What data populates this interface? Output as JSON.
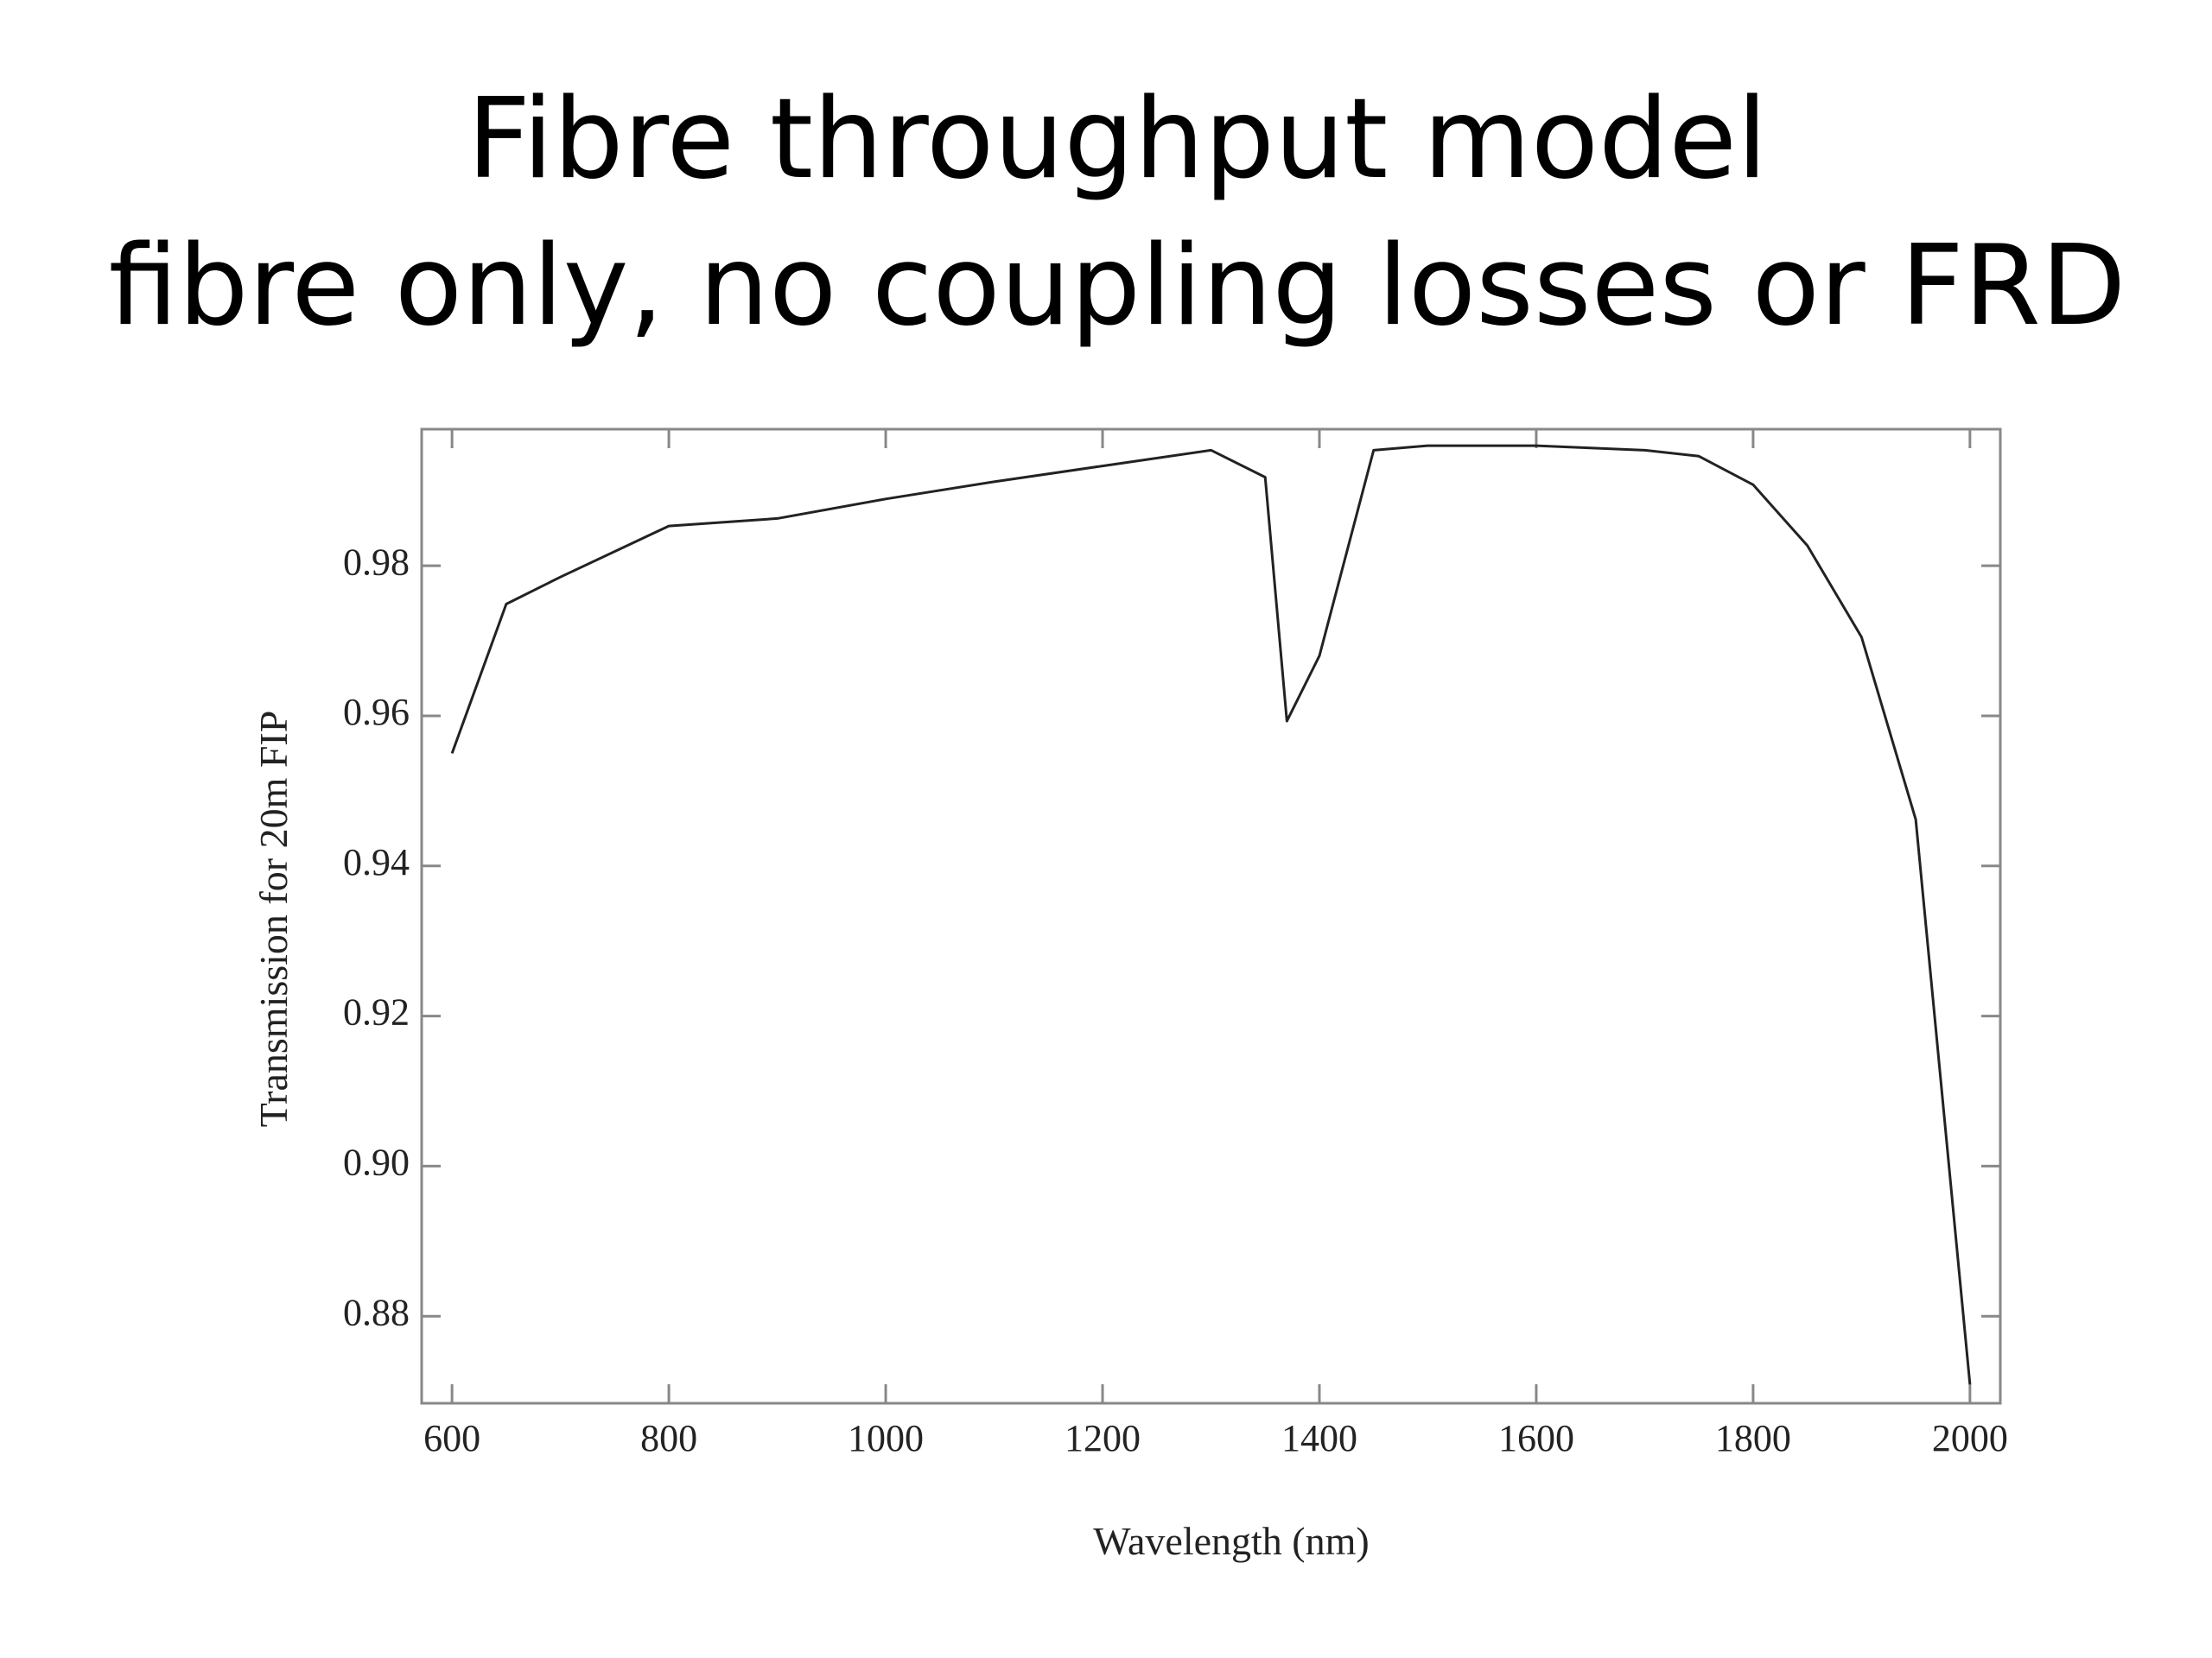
{
  "chart_data": {
    "type": "line",
    "title": "Fibre throughput model",
    "subtitle": "fibre only, no coupling losses or FRD",
    "x_label": "Wavelength (nm)",
    "y_label": "Transmission for 20m FIP",
    "x": [
      600,
      650,
      700,
      800,
      900,
      1000,
      1100,
      1200,
      1300,
      1350,
      1370,
      1400,
      1450,
      1500,
      1600,
      1700,
      1750,
      1800,
      1850,
      1900,
      1950,
      2000
    ],
    "series": [
      {
        "color": "#222222",
        "values": [
          0.955,
          0.9749,
          0.9785,
          0.9853,
          0.9863,
          0.9889,
          0.9912,
          0.9933,
          0.9954,
          0.9918,
          0.9593,
          0.968,
          0.9954,
          0.996,
          0.996,
          0.9954,
          0.9946,
          0.9908,
          0.9827,
          0.9705,
          0.9462,
          0.8709
        ]
      }
    ],
    "xlim": [
      572,
      2028
    ],
    "ylim": [
      0.8684,
      0.9982
    ],
    "xticks": [
      600,
      800,
      1000,
      1200,
      1400,
      1600,
      1800,
      2000
    ],
    "yticks": [
      0.88,
      {
        "value": 0.9,
        "label": "0.90"
      },
      0.92,
      0.94,
      0.96,
      0.98
    ]
  }
}
